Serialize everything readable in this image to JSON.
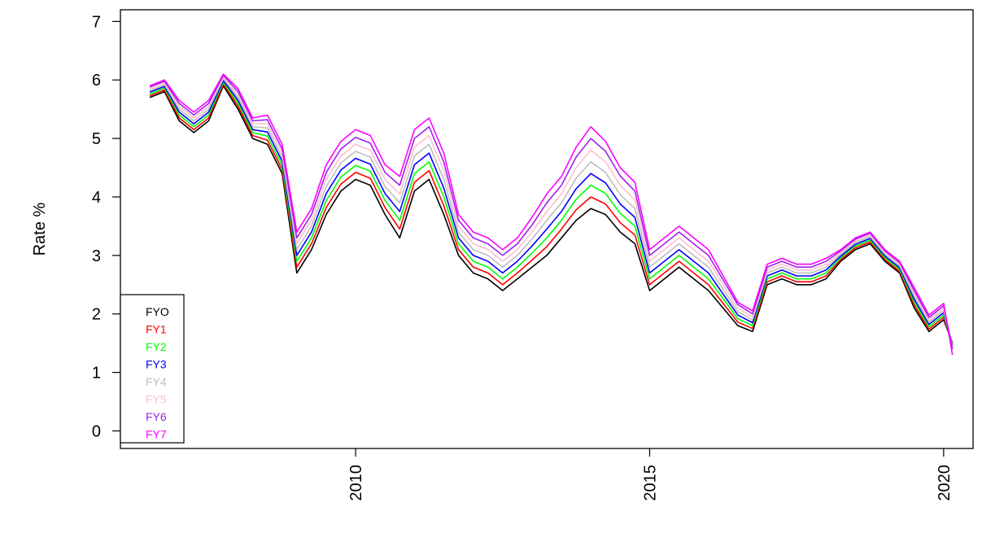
{
  "chart_data": {
    "type": "line",
    "title": "",
    "xlabel": "",
    "ylabel": "Rate %",
    "xlim": [
      2006.0,
      2020.5
    ],
    "ylim": [
      -0.3,
      7.2
    ],
    "x_ticks": [
      2010,
      2015,
      2020
    ],
    "x_tick_labels": [
      "2010",
      "2015",
      "2020"
    ],
    "y_ticks": [
      0,
      1,
      2,
      3,
      4,
      5,
      6,
      7
    ],
    "y_tick_labels": [
      "0",
      "1",
      "2",
      "3",
      "4",
      "5",
      "6",
      "7"
    ],
    "grid": false,
    "legend_position": "bottom-left",
    "x": [
      2006.5,
      2006.75,
      2007.0,
      2007.25,
      2007.5,
      2007.75,
      2008.0,
      2008.25,
      2008.5,
      2008.75,
      2009.0,
      2009.25,
      2009.5,
      2009.75,
      2010.0,
      2010.25,
      2010.5,
      2010.75,
      2011.0,
      2011.25,
      2011.5,
      2011.75,
      2012.0,
      2012.25,
      2012.5,
      2012.75,
      2013.0,
      2013.25,
      2013.5,
      2013.75,
      2014.0,
      2014.25,
      2014.5,
      2014.75,
      2015.0,
      2015.25,
      2015.5,
      2015.75,
      2016.0,
      2016.25,
      2016.5,
      2016.75,
      2017.0,
      2017.25,
      2017.5,
      2017.75,
      2018.0,
      2018.25,
      2018.5,
      2018.75,
      2019.0,
      2019.25,
      2019.5,
      2019.75,
      2020.0,
      2020.15
    ],
    "series": [
      {
        "name": "FYO",
        "color": "#000000",
        "values": [
          5.7,
          5.8,
          5.3,
          5.1,
          5.3,
          5.9,
          5.5,
          5.0,
          4.9,
          4.4,
          2.7,
          3.1,
          3.7,
          4.1,
          4.3,
          4.2,
          3.7,
          3.3,
          4.1,
          4.3,
          3.7,
          3.0,
          2.7,
          2.6,
          2.4,
          2.6,
          2.8,
          3.0,
          3.3,
          3.6,
          3.8,
          3.7,
          3.4,
          3.2,
          2.4,
          2.6,
          2.8,
          2.6,
          2.4,
          2.1,
          1.8,
          1.7,
          2.5,
          2.6,
          2.5,
          2.5,
          2.6,
          2.9,
          3.1,
          3.2,
          2.9,
          2.7,
          2.1,
          1.7,
          1.9,
          1.5
        ]
      },
      {
        "name": "FY1",
        "color": "#ff0000",
        "values": [
          5.73,
          5.83,
          5.35,
          5.15,
          5.35,
          5.93,
          5.55,
          5.05,
          4.97,
          4.47,
          2.8,
          3.2,
          3.82,
          4.22,
          4.42,
          4.32,
          3.82,
          3.45,
          4.25,
          4.45,
          3.85,
          3.1,
          2.8,
          2.7,
          2.5,
          2.7,
          2.92,
          3.15,
          3.45,
          3.78,
          4.0,
          3.88,
          3.56,
          3.35,
          2.5,
          2.7,
          2.9,
          2.7,
          2.5,
          2.18,
          1.86,
          1.75,
          2.55,
          2.65,
          2.55,
          2.55,
          2.65,
          2.93,
          3.13,
          3.23,
          2.93,
          2.73,
          2.15,
          1.74,
          1.94,
          1.5
        ]
      },
      {
        "name": "FY2",
        "color": "#00ff00",
        "values": [
          5.76,
          5.86,
          5.4,
          5.2,
          5.4,
          5.96,
          5.6,
          5.1,
          5.04,
          4.54,
          2.9,
          3.3,
          3.94,
          4.34,
          4.54,
          4.44,
          3.94,
          3.6,
          4.4,
          4.6,
          4.0,
          3.2,
          2.9,
          2.8,
          2.6,
          2.8,
          3.04,
          3.3,
          3.6,
          3.96,
          4.2,
          4.06,
          3.72,
          3.5,
          2.6,
          2.8,
          3.0,
          2.8,
          2.6,
          2.26,
          1.92,
          1.8,
          2.6,
          2.7,
          2.6,
          2.6,
          2.7,
          2.96,
          3.16,
          3.26,
          2.96,
          2.76,
          2.2,
          1.78,
          1.98,
          1.48
        ]
      },
      {
        "name": "FY3",
        "color": "#0000ff",
        "values": [
          5.79,
          5.89,
          5.45,
          5.25,
          5.45,
          5.99,
          5.65,
          5.15,
          5.11,
          4.61,
          3.0,
          3.4,
          4.06,
          4.46,
          4.66,
          4.56,
          4.06,
          3.75,
          4.55,
          4.75,
          4.15,
          3.3,
          3.0,
          2.9,
          2.7,
          2.9,
          3.16,
          3.45,
          3.75,
          4.14,
          4.4,
          4.24,
          3.88,
          3.65,
          2.7,
          2.9,
          3.1,
          2.9,
          2.7,
          2.34,
          1.98,
          1.85,
          2.65,
          2.75,
          2.65,
          2.65,
          2.75,
          2.99,
          3.19,
          3.29,
          2.99,
          2.79,
          2.25,
          1.82,
          2.02,
          1.46
        ]
      },
      {
        "name": "FY4",
        "color": "#bebebe",
        "values": [
          5.82,
          5.92,
          5.5,
          5.3,
          5.5,
          6.02,
          5.7,
          5.2,
          5.18,
          4.68,
          3.1,
          3.5,
          4.18,
          4.58,
          4.78,
          4.68,
          4.18,
          3.9,
          4.7,
          4.9,
          4.3,
          3.4,
          3.1,
          3.0,
          2.8,
          3.0,
          3.28,
          3.6,
          3.9,
          4.32,
          4.6,
          4.42,
          4.04,
          3.8,
          2.8,
          3.0,
          3.2,
          3.0,
          2.8,
          2.42,
          2.04,
          1.9,
          2.7,
          2.8,
          2.7,
          2.7,
          2.8,
          3.02,
          3.22,
          3.32,
          3.02,
          2.82,
          2.3,
          1.86,
          2.06,
          1.44
        ]
      },
      {
        "name": "FY5",
        "color": "#ffc0cb",
        "values": [
          5.85,
          5.95,
          5.55,
          5.35,
          5.55,
          6.05,
          5.75,
          5.25,
          5.25,
          4.75,
          3.2,
          3.6,
          4.3,
          4.7,
          4.9,
          4.8,
          4.3,
          4.05,
          4.85,
          5.05,
          4.45,
          3.5,
          3.2,
          3.1,
          2.9,
          3.1,
          3.4,
          3.75,
          4.05,
          4.5,
          4.8,
          4.6,
          4.2,
          3.95,
          2.9,
          3.1,
          3.3,
          3.1,
          2.9,
          2.5,
          2.1,
          1.95,
          2.75,
          2.85,
          2.75,
          2.75,
          2.85,
          3.05,
          3.25,
          3.35,
          3.05,
          2.85,
          2.35,
          1.9,
          2.1,
          1.42
        ]
      },
      {
        "name": "FY6",
        "color": "#a020f0",
        "values": [
          5.88,
          5.98,
          5.6,
          5.4,
          5.6,
          6.08,
          5.8,
          5.3,
          5.32,
          4.82,
          3.3,
          3.7,
          4.42,
          4.82,
          5.02,
          4.92,
          4.42,
          4.2,
          5.0,
          5.2,
          4.6,
          3.6,
          3.3,
          3.2,
          3.0,
          3.2,
          3.52,
          3.9,
          4.2,
          4.68,
          5.0,
          4.78,
          4.36,
          4.1,
          3.0,
          3.2,
          3.4,
          3.2,
          3.0,
          2.58,
          2.16,
          2.0,
          2.8,
          2.9,
          2.8,
          2.8,
          2.9,
          3.08,
          3.28,
          3.38,
          3.08,
          2.88,
          2.4,
          1.94,
          2.14,
          1.4
        ]
      },
      {
        "name": "FY7",
        "color": "#ff00ff",
        "values": [
          5.9,
          6.0,
          5.65,
          5.45,
          5.65,
          6.1,
          5.85,
          5.35,
          5.4,
          4.9,
          3.4,
          3.8,
          4.55,
          4.95,
          5.15,
          5.05,
          4.55,
          4.35,
          5.15,
          5.35,
          4.75,
          3.7,
          3.4,
          3.3,
          3.1,
          3.3,
          3.65,
          4.05,
          4.35,
          4.85,
          5.2,
          4.95,
          4.5,
          4.25,
          3.1,
          3.3,
          3.5,
          3.3,
          3.1,
          2.65,
          2.2,
          2.05,
          2.85,
          2.95,
          2.85,
          2.85,
          2.95,
          3.1,
          3.3,
          3.4,
          3.1,
          2.9,
          2.45,
          1.98,
          2.18,
          1.3
        ]
      }
    ]
  }
}
